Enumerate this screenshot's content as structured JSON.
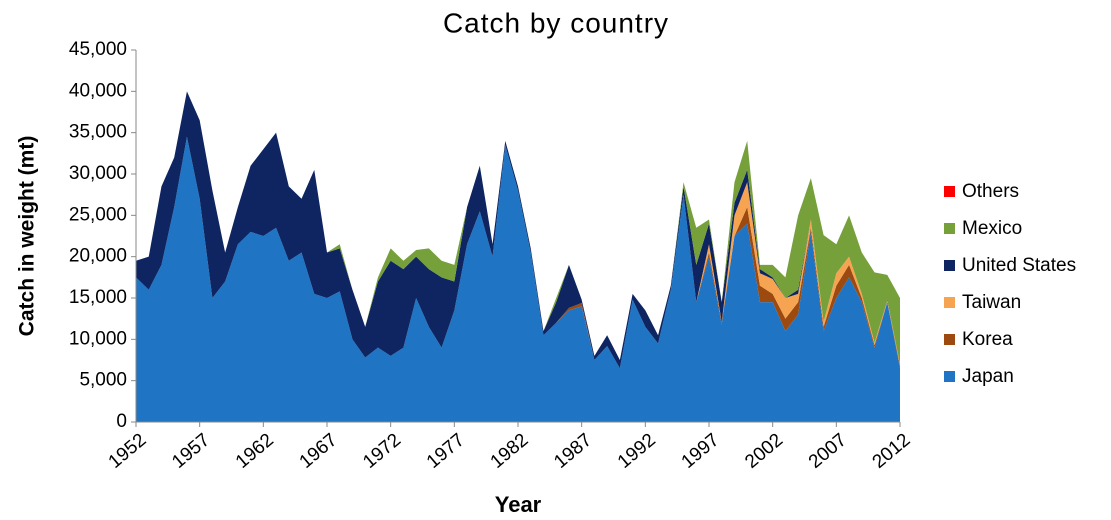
{
  "chart_data": {
    "type": "stacked-area",
    "title": "Catch by country",
    "xlabel": "Year",
    "ylabel": "Catch in weight (mt)",
    "x": [
      1952,
      1953,
      1954,
      1955,
      1956,
      1957,
      1958,
      1959,
      1960,
      1961,
      1962,
      1963,
      1964,
      1965,
      1966,
      1967,
      1968,
      1969,
      1970,
      1971,
      1972,
      1973,
      1974,
      1975,
      1976,
      1977,
      1978,
      1979,
      1980,
      1981,
      1982,
      1983,
      1984,
      1985,
      1986,
      1987,
      1988,
      1989,
      1990,
      1991,
      1992,
      1993,
      1994,
      1995,
      1996,
      1997,
      1998,
      1999,
      2000,
      2001,
      2002,
      2003,
      2004,
      2005,
      2006,
      2007,
      2008,
      2009,
      2010,
      2011,
      2012
    ],
    "xlim": [
      1952,
      2012
    ],
    "xticks": [
      1952,
      1957,
      1962,
      1967,
      1972,
      1977,
      1982,
      1987,
      1992,
      1997,
      2002,
      2007,
      2012
    ],
    "ylim": [
      0,
      45000
    ],
    "yticks": [
      0,
      {
        "value": 5000,
        "label": "5,000"
      },
      {
        "value": 10000,
        "label": "10,000"
      },
      {
        "value": 15000,
        "label": "15,000"
      },
      {
        "value": 20000,
        "label": "20,000"
      },
      {
        "value": 25000,
        "label": "25,000"
      },
      {
        "value": 30000,
        "label": "30,000"
      },
      {
        "value": 35000,
        "label": "35,000"
      },
      {
        "value": 40000,
        "label": "40,000"
      },
      {
        "value": 45000,
        "label": "45,000"
      }
    ],
    "series": [
      {
        "name": "Japan",
        "color": "#1f74c4",
        "values": [
          17500,
          16000,
          19000,
          26000,
          34500,
          27000,
          15000,
          17000,
          21500,
          23000,
          22500,
          23500,
          19500,
          20500,
          15500,
          15000,
          15800,
          10000,
          7800,
          9000,
          8000,
          9000,
          15000,
          11500,
          9000,
          13500,
          21500,
          25500,
          20000,
          33500,
          28000,
          20500,
          10500,
          12000,
          13500,
          14000,
          7500,
          9200,
          6500,
          14800,
          11500,
          9500,
          16000,
          27500,
          14500,
          20000,
          11800,
          22500,
          24000,
          14500,
          14500,
          11000,
          13000,
          23000,
          11000,
          15000,
          17500,
          14500,
          9000,
          14500,
          6500
        ]
      },
      {
        "name": "Korea",
        "color": "#9c4a10",
        "values": [
          0,
          0,
          0,
          0,
          0,
          0,
          0,
          0,
          0,
          0,
          0,
          0,
          0,
          0,
          0,
          0,
          0,
          0,
          0,
          0,
          0,
          0,
          0,
          0,
          0,
          0,
          0,
          0,
          0,
          0,
          0,
          0,
          0,
          0,
          300,
          400,
          0,
          0,
          0,
          0,
          0,
          0,
          0,
          0,
          0,
          500,
          300,
          0,
          2000,
          2000,
          1000,
          1500,
          1500,
          500,
          500,
          1500,
          1500,
          500,
          300,
          0,
          300
        ]
      },
      {
        "name": "Taiwan",
        "color": "#f7a452",
        "values": [
          0,
          0,
          0,
          0,
          0,
          0,
          0,
          0,
          0,
          0,
          0,
          0,
          0,
          0,
          0,
          0,
          0,
          0,
          0,
          0,
          0,
          0,
          0,
          0,
          0,
          0,
          0,
          0,
          0,
          0,
          0,
          0,
          0,
          0,
          0,
          0,
          0,
          0,
          0,
          0,
          0,
          0,
          0,
          0,
          0,
          1000,
          0,
          2500,
          3000,
          1500,
          1800,
          2500,
          1000,
          1000,
          600,
          1500,
          1000,
          500,
          300,
          200,
          200
        ]
      },
      {
        "name": "United States",
        "color": "#0e2562",
        "values": [
          2000,
          4000,
          9500,
          6000,
          5500,
          9500,
          13000,
          3500,
          4500,
          8000,
          10500,
          11500,
          9000,
          6500,
          15000,
          5500,
          5200,
          6000,
          3700,
          8000,
          11500,
          9500,
          5000,
          7000,
          8500,
          3500,
          4500,
          5500,
          1500,
          500,
          500,
          500,
          500,
          2500,
          5200,
          400,
          500,
          1300,
          1000,
          700,
          2000,
          1000,
          500,
          1000,
          4500,
          2500,
          2400,
          1500,
          1500,
          500,
          200,
          0,
          500,
          0,
          0,
          0,
          0,
          0,
          0,
          100,
          0
        ]
      },
      {
        "name": "Mexico",
        "color": "#76a03a",
        "values": [
          0,
          0,
          0,
          0,
          0,
          0,
          0,
          0,
          0,
          0,
          0,
          0,
          0,
          0,
          0,
          0,
          500,
          0,
          0,
          500,
          1500,
          1000,
          800,
          2500,
          2000,
          2000,
          0,
          0,
          0,
          0,
          0,
          0,
          0,
          500,
          0,
          0,
          0,
          0,
          0,
          0,
          0,
          0,
          0,
          500,
          4500,
          500,
          0,
          2500,
          3500,
          500,
          1500,
          2500,
          9000,
          5000,
          10500,
          3500,
          5000,
          5000,
          8500,
          3000,
          8000
        ]
      },
      {
        "name": "Others",
        "color": "#ff0000",
        "values": [
          0,
          0,
          0,
          0,
          0,
          0,
          0,
          0,
          0,
          0,
          0,
          0,
          0,
          0,
          0,
          0,
          0,
          0,
          0,
          0,
          0,
          0,
          0,
          0,
          0,
          0,
          0,
          0,
          0,
          0,
          0,
          0,
          0,
          0,
          0,
          0,
          0,
          0,
          0,
          0,
          0,
          0,
          0,
          0,
          0,
          0,
          0,
          0,
          0,
          0,
          0,
          0,
          0,
          0,
          0,
          0,
          0,
          0,
          0,
          0,
          0
        ]
      }
    ]
  }
}
